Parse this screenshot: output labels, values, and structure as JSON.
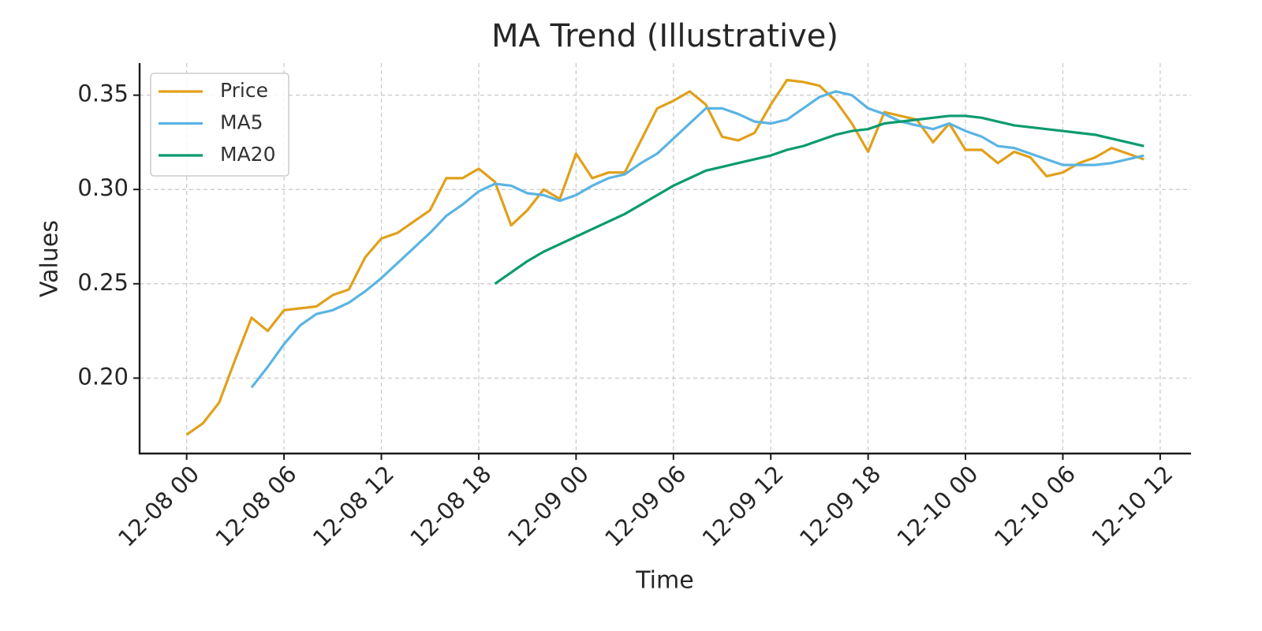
{
  "chart_data": {
    "type": "line",
    "title": "MA Trend (Illustrative)",
    "x_label": "Time",
    "y_label": "Values",
    "x": [
      0,
      1,
      2,
      3,
      4,
      5,
      6,
      7,
      8,
      9,
      10,
      11,
      12,
      13,
      14,
      15,
      16,
      17,
      18,
      19,
      20,
      21,
      22,
      23,
      24,
      25,
      26,
      27,
      28,
      29,
      30,
      31,
      32,
      33,
      34,
      35,
      36,
      37,
      38,
      39,
      40,
      41,
      42,
      43,
      44,
      45,
      46,
      47,
      48,
      49,
      50,
      51,
      52,
      53,
      54,
      55,
      56,
      57,
      58,
      59
    ],
    "series": [
      {
        "name": "Price",
        "color": "#e1a01a",
        "values": [
          0.17,
          0.176,
          0.187,
          0.21,
          0.232,
          0.225,
          0.236,
          0.237,
          0.238,
          0.244,
          0.247,
          0.264,
          0.274,
          0.277,
          0.283,
          0.289,
          0.306,
          0.306,
          0.311,
          0.304,
          0.281,
          0.289,
          0.3,
          0.295,
          0.319,
          0.306,
          0.309,
          0.309,
          0.326,
          0.343,
          0.347,
          0.352,
          0.345,
          0.328,
          0.326,
          0.33,
          0.345,
          0.358,
          0.357,
          0.355,
          0.347,
          0.335,
          0.32,
          0.341,
          0.339,
          0.337,
          0.325,
          0.335,
          0.321,
          0.321,
          0.314,
          0.32,
          0.317,
          0.307,
          0.309,
          0.314,
          0.317,
          0.322,
          0.319,
          0.316
        ]
      },
      {
        "name": "MA5",
        "color": "#5ab4e3",
        "values": [
          null,
          null,
          null,
          null,
          0.195,
          0.206,
          0.218,
          0.228,
          0.234,
          0.236,
          0.24,
          0.246,
          0.253,
          0.261,
          0.269,
          0.277,
          0.286,
          0.292,
          0.299,
          0.303,
          0.302,
          0.298,
          0.297,
          0.294,
          0.297,
          0.302,
          0.306,
          0.308,
          0.314,
          0.319,
          0.327,
          0.335,
          0.343,
          0.343,
          0.34,
          0.336,
          0.335,
          0.337,
          0.343,
          0.349,
          0.352,
          0.35,
          0.343,
          0.34,
          0.336,
          0.334,
          0.332,
          0.335,
          0.331,
          0.328,
          0.323,
          0.322,
          0.319,
          0.316,
          0.313,
          0.313,
          0.313,
          0.314,
          0.316,
          0.318
        ]
      },
      {
        "name": "MA20",
        "color": "#0a9b6e",
        "values": [
          null,
          null,
          null,
          null,
          null,
          null,
          null,
          null,
          null,
          null,
          null,
          null,
          null,
          null,
          null,
          null,
          null,
          null,
          null,
          0.25,
          0.256,
          0.262,
          0.267,
          0.271,
          0.275,
          0.279,
          0.283,
          0.287,
          0.292,
          0.297,
          0.302,
          0.306,
          0.31,
          0.312,
          0.314,
          0.316,
          0.318,
          0.321,
          0.323,
          0.326,
          0.329,
          0.331,
          0.332,
          0.335,
          0.336,
          0.337,
          0.338,
          0.339,
          0.339,
          0.338,
          0.336,
          0.334,
          0.333,
          0.332,
          0.331,
          0.33,
          0.329,
          0.327,
          0.325,
          0.323
        ]
      }
    ],
    "xlim": [
      -2.9,
      61.9
    ],
    "xticks": [
      {
        "value": 0,
        "label": "12-08 00"
      },
      {
        "value": 6,
        "label": "12-08 06"
      },
      {
        "value": 12,
        "label": "12-08 12"
      },
      {
        "value": 18,
        "label": "12-08 18"
      },
      {
        "value": 24,
        "label": "12-09 00"
      },
      {
        "value": 30,
        "label": "12-09 06"
      },
      {
        "value": 36,
        "label": "12-09 12"
      },
      {
        "value": 42,
        "label": "12-09 18"
      },
      {
        "value": 48,
        "label": "12-10 00"
      },
      {
        "value": 54,
        "label": "12-10 06"
      },
      {
        "value": 60,
        "label": "12-10 12"
      }
    ],
    "ylim": [
      0.16,
      0.367
    ],
    "yticks": [
      {
        "value": 0.2,
        "label": "0.20"
      },
      {
        "value": 0.25,
        "label": "0.25"
      },
      {
        "value": 0.3,
        "label": "0.30"
      },
      {
        "value": 0.35,
        "label": "0.35"
      }
    ],
    "grid": true,
    "legend": "upper left"
  }
}
